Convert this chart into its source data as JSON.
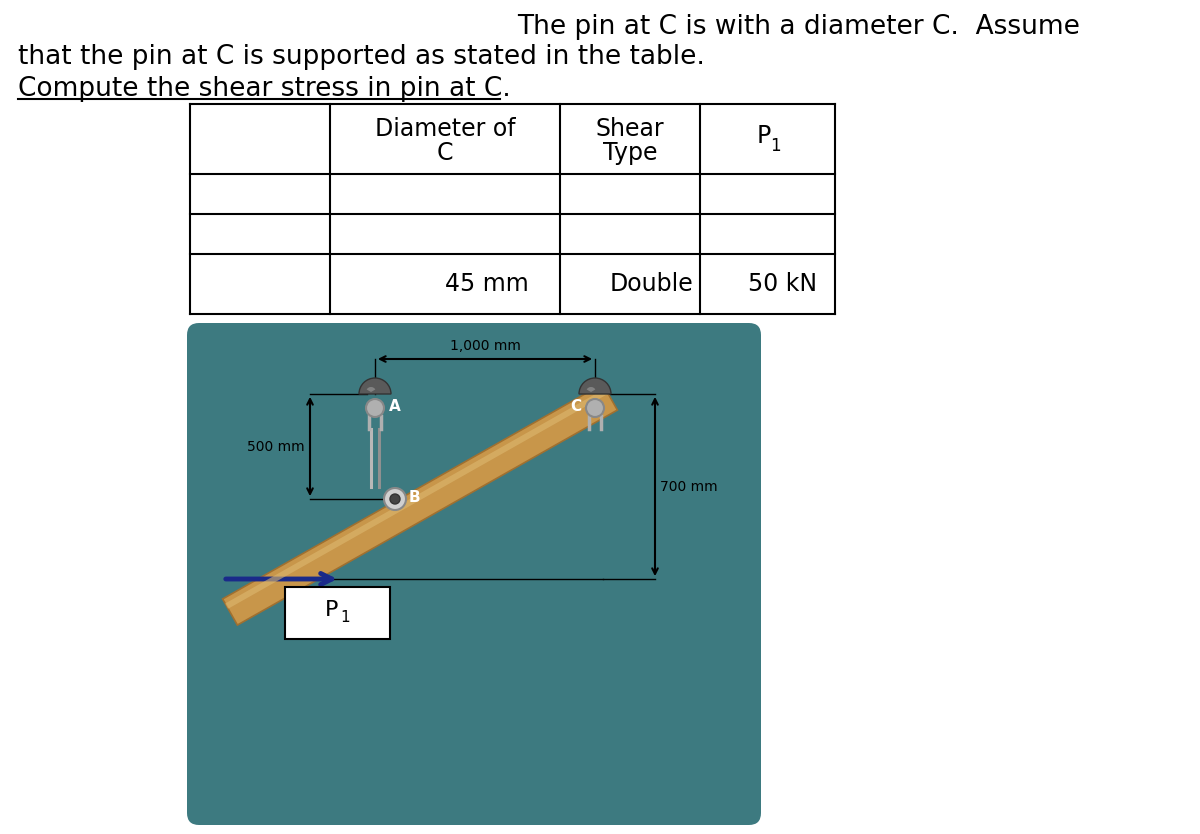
{
  "title_line1": "The pin at C is with a diameter C.  Assume",
  "title_line2": "that the pin at C is supported as stated in the table.",
  "title_line3": "Compute the shear stress in pin at C.",
  "table_row_data": [
    "45 mm",
    "Double",
    "50 kN"
  ],
  "diagram_bg": "#3d7a80",
  "beam_color": "#c8964a",
  "beam_edge_color": "#a07030",
  "beam_highlight_color": "#ddb870",
  "pin_cap_color": "#5a5a5a",
  "pin_cap_edge": "#333333",
  "pin_body_color": "#b0b0b0",
  "pin_body_edge": "#888888",
  "rod_color": "#aaaaaa",
  "arrow_color": "#1a2a8a",
  "black": "#000000",
  "white": "#ffffff",
  "dim_horiz": "1,000 mm",
  "dim_vert_left": "500 mm",
  "dim_vert_right": "700 mm",
  "label_A": "A",
  "label_B": "B",
  "label_C": "C",
  "background_color": "#ffffff",
  "font_size_title": 19,
  "font_size_table": 17,
  "font_size_diagram": 11
}
